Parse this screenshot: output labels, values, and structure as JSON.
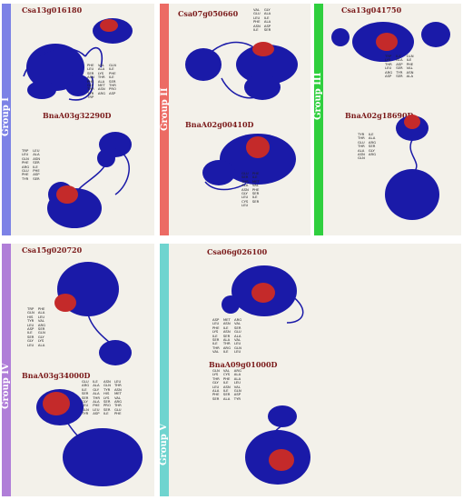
{
  "colors": {
    "protein": "#1a1aa8",
    "site": "#c42a2a",
    "panel": "#f3f1ea",
    "group_I": "#7c82e6",
    "group_II": "#ec6b64",
    "group_III": "#2fcf3f",
    "group_IV": "#b07ed8",
    "group_V": "#6fd4cf"
  },
  "groups": {
    "I": "Group I",
    "II": "Group II",
    "III": "Group III",
    "IV": "Group IV",
    "V": "Group V"
  },
  "proteins": {
    "p1": "Csa13g016180",
    "p2": "BnaA03g32290D",
    "p3": "Csa07g050660",
    "p4": "BnaA02g00410D",
    "p5": "Csa13g041750",
    "p6": "BnaA02g18690D",
    "p7": "Csa15g020720",
    "p8": "BnaA03g34000D",
    "p9": "Csa06g026100",
    "p10": "BnaA09g01000D"
  },
  "residues": {
    "r1": [
      "PHE",
      "VAL",
      "GLN",
      "LEU",
      "ALA",
      "ILE",
      "SER",
      "LYS",
      "PHE",
      "ASN",
      "THR",
      "ILE",
      "PHE",
      "ALA",
      "SER",
      "GLY",
      "MET",
      "THR",
      "THR",
      "ASN",
      "PRO",
      "TYR",
      "ARG",
      "ASP",
      "TRP"
    ],
    "r2": [
      "TRP",
      "LEU",
      "LEU",
      "ALA",
      "GLN",
      "ASN",
      "PHE",
      "SER",
      "ARG",
      "ILE",
      "GLU",
      "PHE",
      "PHE",
      "ASP",
      "TYR",
      "SER"
    ],
    "r3": [
      "VAL",
      "GLY",
      "GLU",
      "ALA",
      "LEU",
      "ILE",
      "PHE",
      "ALA",
      "ASN",
      "ASP",
      "ILE",
      "SER"
    ],
    "r4": [
      "GLU",
      "PHE",
      "SER",
      "ILE",
      "THR",
      "MET",
      "ALA",
      "VAL",
      "ASN",
      "PHE",
      "GLY",
      "SER",
      "LEU",
      "ILE",
      "CYS",
      "SER",
      "LEU"
    ],
    "r5": [
      "TRP",
      "ILE",
      "GLN",
      "LYS",
      "ALA",
      "ILE",
      "THR",
      "ASP",
      "PHE",
      "LEU",
      "SER",
      "VAL",
      "ARG",
      "TYR",
      "ASN",
      "ASP",
      "SER",
      "ALA"
    ],
    "r6": [
      "TYR",
      "ILE",
      "THR",
      "ALA",
      "GLU",
      "ARG",
      "THR",
      "SER",
      "ALA",
      "GLY",
      "ASN",
      "ARG",
      "GLN"
    ],
    "r7": [
      "TRP",
      "PHE",
      "GLN",
      "ALA",
      "HIS",
      "LEU",
      "TYR",
      "VAL",
      "LEU",
      "ARG",
      "ASP",
      "SER",
      "ILE",
      "GLN",
      "SER",
      "GLY",
      "GLY",
      "LYS",
      "LEU",
      "ALA"
    ],
    "r8": [
      "GLU",
      "ILE",
      "ASN",
      "LEU",
      "ARG",
      "ALA",
      "GLN",
      "THR",
      "ILE",
      "GLY",
      "TYR",
      "ASN",
      "SER",
      "ALA",
      "HIS",
      "MET",
      "SER",
      "THR",
      "LYS",
      "VAL",
      "GLY",
      "ALA",
      "SER",
      "ARG",
      "LEU",
      "PHE",
      "PRO",
      "THR",
      "GLN",
      "LEU",
      "SER",
      "GLU",
      "TYR",
      "ASP",
      "ILE",
      "PHE"
    ],
    "r9": [
      "ASP",
      "MET",
      "ARG",
      "LEU",
      "ASN",
      "VAL",
      "PHE",
      "ILE",
      "SER",
      "LYS",
      "ASN",
      "GLU",
      "ILE",
      "SER",
      "ALA",
      "SER",
      "ALA",
      "VAL",
      "ILE",
      "THR",
      "LEU",
      "THR",
      "ARG",
      "GLN",
      "VAL",
      "ILE",
      "LEU"
    ],
    "r10": [
      "GLN",
      "VAL",
      "ARG",
      "LYS",
      "CYS",
      "ALA",
      "THR",
      "PHE",
      "ALA",
      "GLY",
      "ILE",
      "LEU",
      "LEU",
      "ASN",
      "VAL",
      "ALA",
      "ILE",
      "GLN",
      "PHE",
      "SER",
      "ASP",
      "SER",
      "ALA",
      "TYR"
    ]
  }
}
